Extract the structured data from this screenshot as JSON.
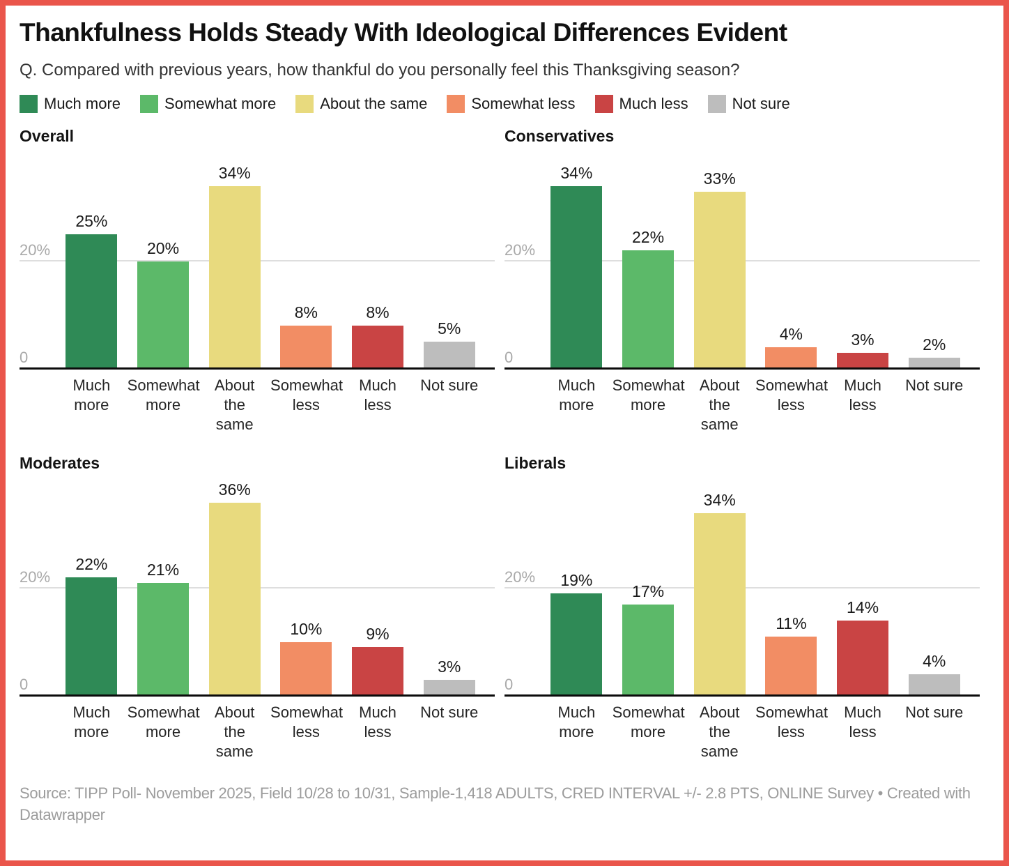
{
  "frame": {
    "border_color": "#ea554b"
  },
  "header": {
    "title": "Thankfulness Holds Steady With Ideological Differences Evident",
    "subtitle": "Q. Compared with previous years, how thankful do you personally feel this Thanksgiving season?"
  },
  "legend": {
    "items": [
      {
        "label": "Much more",
        "color": "#2f8a56"
      },
      {
        "label": "Somewhat more",
        "color": "#5cb969"
      },
      {
        "label": "About the same",
        "color": "#e8da7e"
      },
      {
        "label": "Somewhat less",
        "color": "#f28d64"
      },
      {
        "label": "Much less",
        "color": "#c94444"
      },
      {
        "label": "Not sure",
        "color": "#bdbdbd"
      }
    ]
  },
  "chart_data": {
    "type": "bar",
    "layout": "2x2 small multiples",
    "title": "Thankfulness Holds Steady With Ideological Differences Evident",
    "categories": [
      "Much more",
      "Somewhat more",
      "About the same",
      "Somewhat less",
      "Much less",
      "Not sure"
    ],
    "tick_lines": [
      [
        "Much",
        "more"
      ],
      [
        "Somewhat",
        "more"
      ],
      [
        "About",
        "the",
        "same"
      ],
      [
        "Somewhat",
        "less"
      ],
      [
        "Much",
        "less"
      ],
      [
        "Not sure"
      ]
    ],
    "category_colors": [
      "#2f8a56",
      "#5cb969",
      "#e8da7e",
      "#f28d64",
      "#c94444",
      "#bdbdbd"
    ],
    "series": [
      {
        "name": "Overall",
        "values": [
          25,
          20,
          34,
          8,
          8,
          5
        ]
      },
      {
        "name": "Conservatives",
        "values": [
          34,
          22,
          33,
          4,
          3,
          2
        ]
      },
      {
        "name": "Moderates",
        "values": [
          22,
          21,
          36,
          10,
          9,
          3
        ]
      },
      {
        "name": "Liberals",
        "values": [
          19,
          17,
          34,
          11,
          14,
          4
        ]
      }
    ],
    "value_suffix": "%",
    "data_labels": true,
    "y_ticks": [
      {
        "value": 0,
        "label": "0",
        "gridline": false
      },
      {
        "value": 20,
        "label": "20%",
        "gridline": true
      }
    ],
    "ylim": [
      0,
      37
    ],
    "grid": "horizontal gridline at 20% only",
    "legend_position": "top"
  },
  "footer": {
    "text": "Source: TIPP Poll- November 2025, Field 10/28 to 10/31, Sample-1,418 ADULTS, CRED INTERVAL +/- 2.8 PTS, ONLINE Survey • Created with Datawrapper"
  }
}
